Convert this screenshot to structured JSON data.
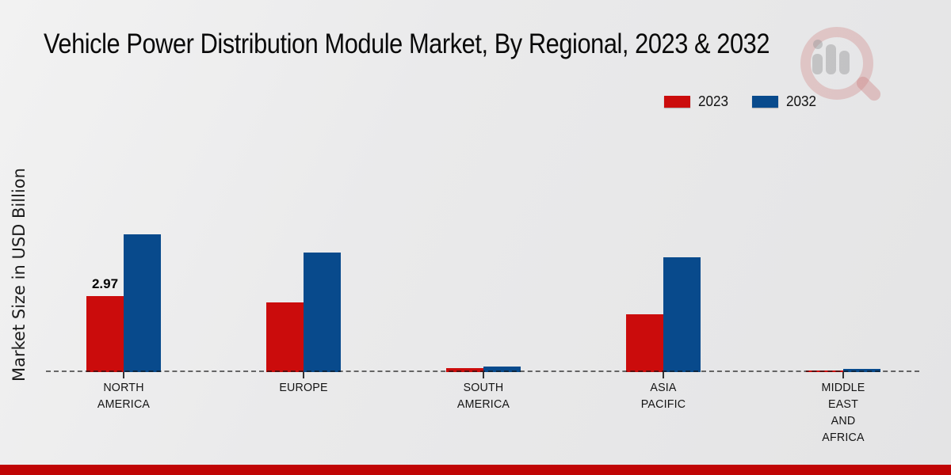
{
  "header": {
    "title": "Vehicle Power Distribution Module Market, By Regional, 2023 & 2032"
  },
  "chart_data": {
    "type": "bar",
    "title": "Vehicle Power Distribution Module Market, By Regional, 2023 & 2032",
    "xlabel": "",
    "ylabel": "Market Size in USD Billion",
    "units": "USD Billion",
    "ylim": [
      0,
      5.5
    ],
    "grid": false,
    "legend_position": "top-right",
    "baseline_style": "dashed",
    "baseline_color": "#555555",
    "categories": [
      "North America",
      "Europe",
      "South America",
      "Asia Pacific",
      "Middle East and Africa"
    ],
    "category_display_lines": [
      [
        "NORTH",
        "AMERICA"
      ],
      [
        "EUROPE"
      ],
      [
        "SOUTH",
        "AMERICA"
      ],
      [
        "ASIA",
        "PACIFIC"
      ],
      [
        "MIDDLE",
        "EAST",
        "AND",
        "AFRICA"
      ]
    ],
    "series": [
      {
        "name": "2023",
        "color": "#cb0c0c",
        "values": [
          2.97,
          2.72,
          0.15,
          2.26,
          0.07
        ],
        "point_labels": [
          "2.97",
          null,
          null,
          null,
          null
        ]
      },
      {
        "name": "2032",
        "color": "#084a8c",
        "values": [
          5.38,
          4.67,
          0.22,
          4.49,
          0.12
        ],
        "point_labels": [
          null,
          null,
          null,
          null,
          null
        ]
      }
    ]
  },
  "watermark": {
    "icon": "magnifier-bar-chart-logo"
  },
  "footer": {
    "accent_color": "#c00505"
  }
}
